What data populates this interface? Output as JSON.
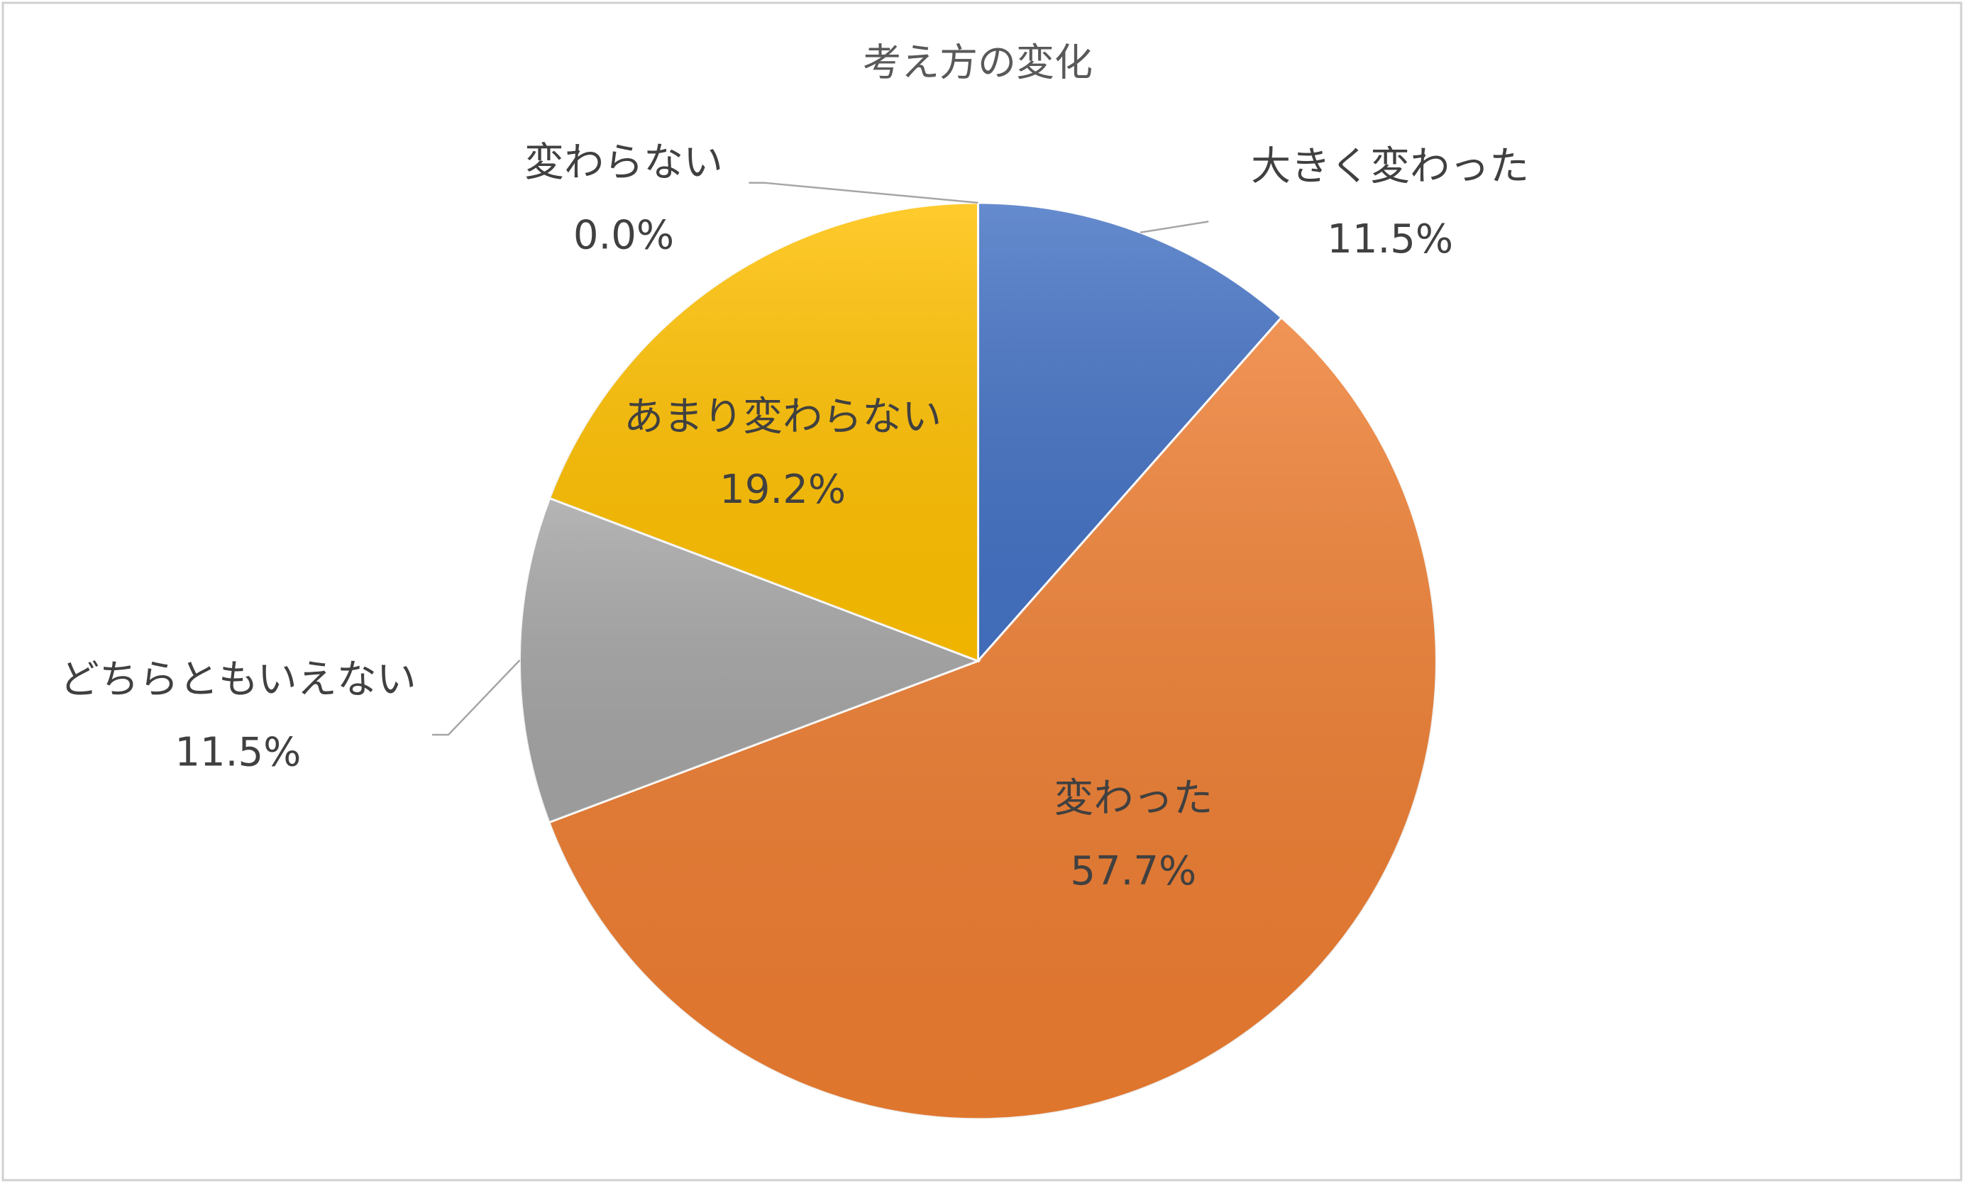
{
  "chart_data": {
    "type": "pie",
    "title": "考え方の変化",
    "categories": [
      "大きく変わった",
      "変わった",
      "どちらともいえない",
      "あまり変わらない",
      "変わらない"
    ],
    "values": [
      11.5,
      57.7,
      11.5,
      19.2,
      0.0
    ],
    "value_labels": [
      "11.5%",
      "57.7%",
      "11.5%",
      "19.2%",
      "0.0%"
    ],
    "colors": [
      "#4472c4",
      "#ed7d31",
      "#a5a5a5",
      "#ffc000",
      "#5b9bd5"
    ]
  }
}
